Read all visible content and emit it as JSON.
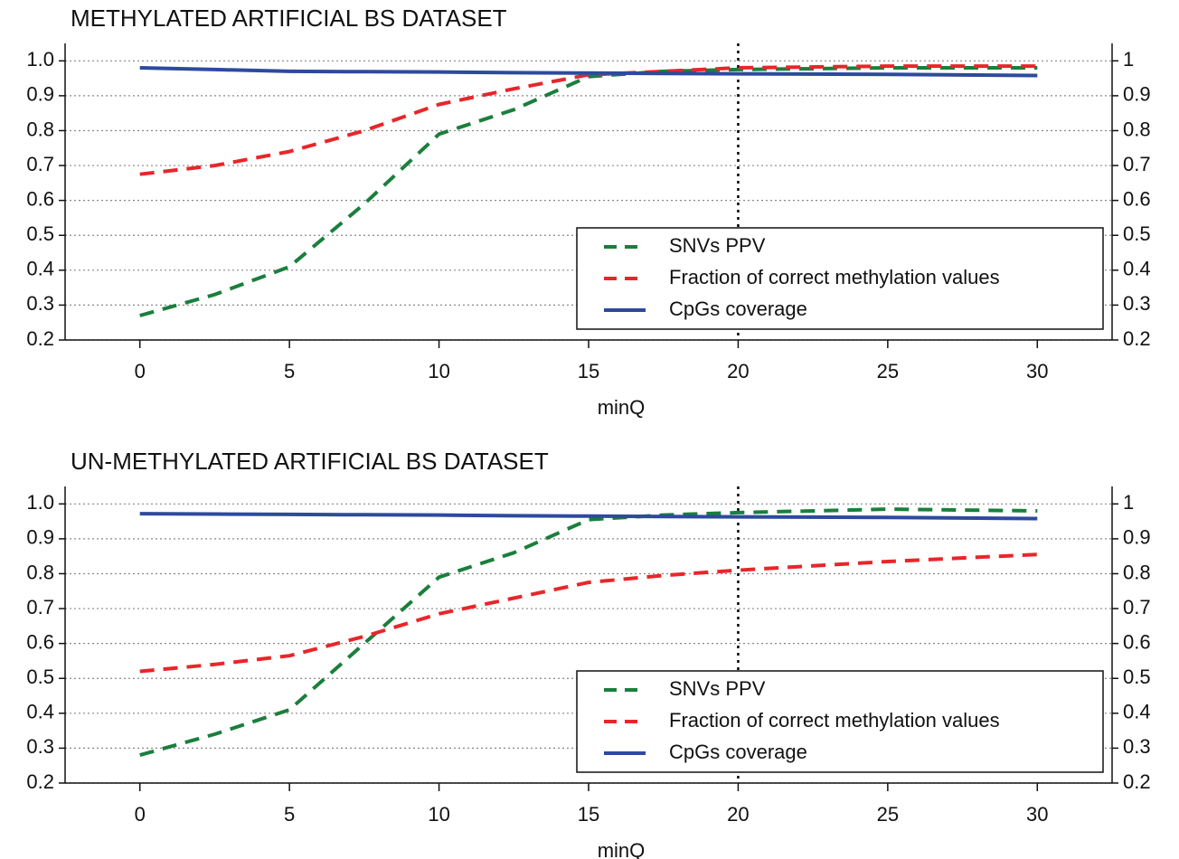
{
  "chart_data": [
    {
      "type": "line",
      "title": "METHYLATED ARTIFICIAL BS DATASET",
      "x_label": "minQ",
      "x": [
        0,
        2.5,
        5,
        7.5,
        10,
        12.5,
        15,
        17.5,
        20,
        25,
        30
      ],
      "series": [
        {
          "name": "SNVs PPV",
          "color": "#1a7f3c",
          "dash": true,
          "values": [
            0.27,
            0.33,
            0.41,
            0.59,
            0.79,
            0.86,
            0.955,
            0.97,
            0.975,
            0.98,
            0.98
          ]
        },
        {
          "name": "Fraction of correct methylation values",
          "color": "#e8262a",
          "dash": true,
          "values": [
            0.675,
            0.7,
            0.74,
            0.8,
            0.875,
            0.92,
            0.96,
            0.97,
            0.98,
            0.985,
            0.985
          ]
        },
        {
          "name": "CpGs coverage",
          "color": "#2e4a9e",
          "dash": false,
          "values": [
            0.98,
            0.975,
            0.97,
            0.969,
            0.968,
            0.966,
            0.965,
            0.964,
            0.963,
            0.961,
            0.958
          ]
        }
      ],
      "xlim": [
        -2.5,
        32.5
      ],
      "xticks": [
        0,
        5,
        10,
        15,
        20,
        25,
        30
      ],
      "ylim": [
        0.2,
        1.05
      ],
      "yticks": [
        0.2,
        0.3,
        0.4,
        0.5,
        0.6,
        0.7,
        0.8,
        0.9,
        {
          "value": 1,
          "label": "1.0"
        }
      ],
      "y2lim": [
        0.2,
        1.05
      ],
      "y2ticks": [
        0.2,
        0.3,
        0.4,
        0.5,
        0.6,
        0.7,
        0.8,
        0.9,
        1
      ],
      "vline": 20,
      "grid": true,
      "legend": "lower right"
    },
    {
      "type": "line",
      "title": "UN-METHYLATED ARTIFICIAL BS DATASET",
      "x_label": "minQ",
      "x": [
        0,
        2.5,
        5,
        7.5,
        10,
        12.5,
        15,
        17.5,
        20,
        25,
        30
      ],
      "series": [
        {
          "name": "SNVs PPV",
          "color": "#1a7f3c",
          "dash": true,
          "values": [
            0.28,
            0.34,
            0.41,
            0.6,
            0.79,
            0.86,
            0.955,
            0.968,
            0.975,
            0.985,
            0.98
          ]
        },
        {
          "name": "Fraction of correct methylation values",
          "color": "#e8262a",
          "dash": true,
          "values": [
            0.52,
            0.54,
            0.565,
            0.62,
            0.685,
            0.73,
            0.775,
            0.795,
            0.81,
            0.835,
            0.855
          ]
        },
        {
          "name": "CpGs coverage",
          "color": "#2e4a9e",
          "dash": false,
          "values": [
            0.972,
            0.971,
            0.97,
            0.969,
            0.968,
            0.966,
            0.965,
            0.964,
            0.963,
            0.961,
            0.958
          ]
        }
      ],
      "xlim": [
        -2.5,
        32.5
      ],
      "xticks": [
        0,
        5,
        10,
        15,
        20,
        25,
        30
      ],
      "ylim": [
        0.2,
        1.05
      ],
      "yticks": [
        0.2,
        0.3,
        0.4,
        0.5,
        0.6,
        0.7,
        0.8,
        0.9,
        {
          "value": 1,
          "label": "1.0"
        }
      ],
      "y2lim": [
        0.2,
        1.05
      ],
      "y2ticks": [
        0.2,
        0.3,
        0.4,
        0.5,
        0.6,
        0.7,
        0.8,
        0.9,
        1
      ],
      "vline": 20,
      "grid": true,
      "legend": "lower right"
    }
  ]
}
